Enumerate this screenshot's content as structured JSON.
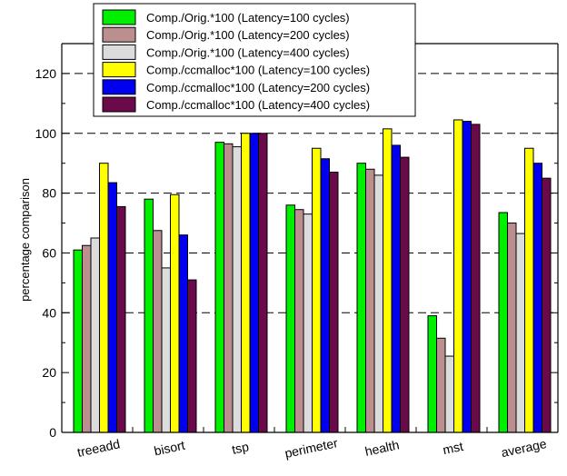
{
  "chart_data": {
    "type": "bar",
    "title": "",
    "xlabel": "",
    "ylabel": "percentage comparison",
    "ylim": [
      0,
      130
    ],
    "yticks": [
      0,
      20,
      40,
      60,
      80,
      100,
      120
    ],
    "grid": "dashed horizontal at 40, 60, 80, 100, 120",
    "legend_position": "top-left",
    "categories": [
      "treeadd",
      "bisort",
      "tsp",
      "perimeter",
      "health",
      "mst",
      "average"
    ],
    "series": [
      {
        "name": "Comp./Orig.*100 (Latency=100 cycles)",
        "color": "#00ee00",
        "values": [
          61,
          78,
          97,
          76,
          90,
          39,
          73.5
        ]
      },
      {
        "name": "Comp./Orig.*100 (Latency=200 cycles)",
        "color": "#bc8f8f",
        "values": [
          62.5,
          67.5,
          96.5,
          74.5,
          88,
          31.5,
          70
        ]
      },
      {
        "name": "Comp./Orig.*100 (Latency=400 cycles)",
        "color": "#dcdcdc",
        "values": [
          65,
          55,
          95.5,
          73,
          86,
          25.5,
          66.5
        ]
      },
      {
        "name": "Comp./ccmalloc*100 (Latency=100 cycles)",
        "color": "#ffff00",
        "values": [
          90,
          79.5,
          100,
          95,
          101.5,
          104.5,
          95
        ]
      },
      {
        "name": "Comp./ccmalloc*100 (Latency=200 cycles)",
        "color": "#0000ee",
        "values": [
          83.5,
          66,
          100,
          91.5,
          96,
          104,
          90
        ]
      },
      {
        "name": "Comp./ccmalloc*100 (Latency=400 cycles)",
        "color": "#6b0a4a",
        "values": [
          75.5,
          51,
          100,
          87,
          92,
          103,
          85
        ]
      }
    ]
  }
}
